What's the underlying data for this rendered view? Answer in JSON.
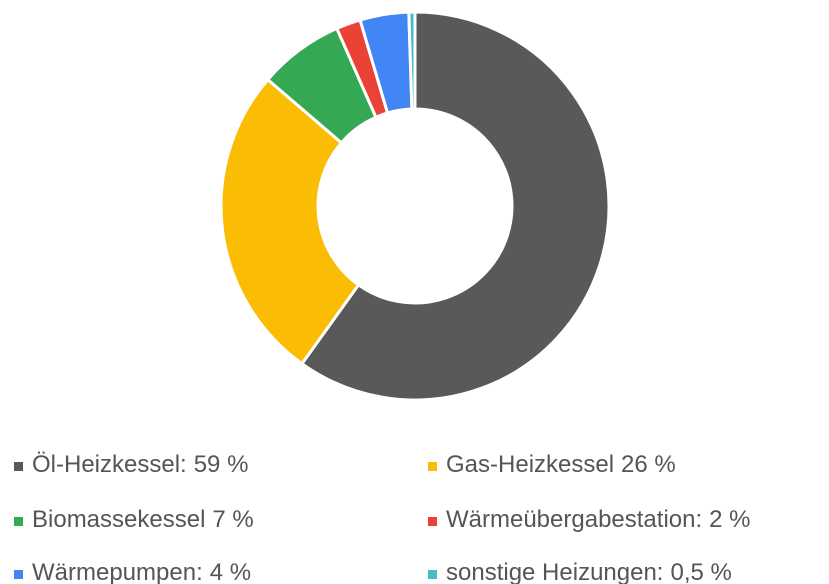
{
  "chart_data": {
    "type": "donut",
    "categories": [
      "Öl-Heizkessel:",
      "Gas-Heizkessel",
      "Biomassekessel",
      "Wärmeübergabestation:",
      "Wärmepumpen:",
      "sonstige Heizungen:"
    ],
    "values": [
      59,
      26,
      7,
      2,
      4,
      0.5
    ],
    "value_labels": [
      "59 %",
      "26 %",
      "7 %",
      "2 %",
      "4 %",
      "0,5 %"
    ],
    "colors": [
      "#595959",
      "#fbbc04",
      "#34a853",
      "#ea4335",
      "#4285f4",
      "#46bdc6"
    ],
    "legend": "bottom"
  }
}
